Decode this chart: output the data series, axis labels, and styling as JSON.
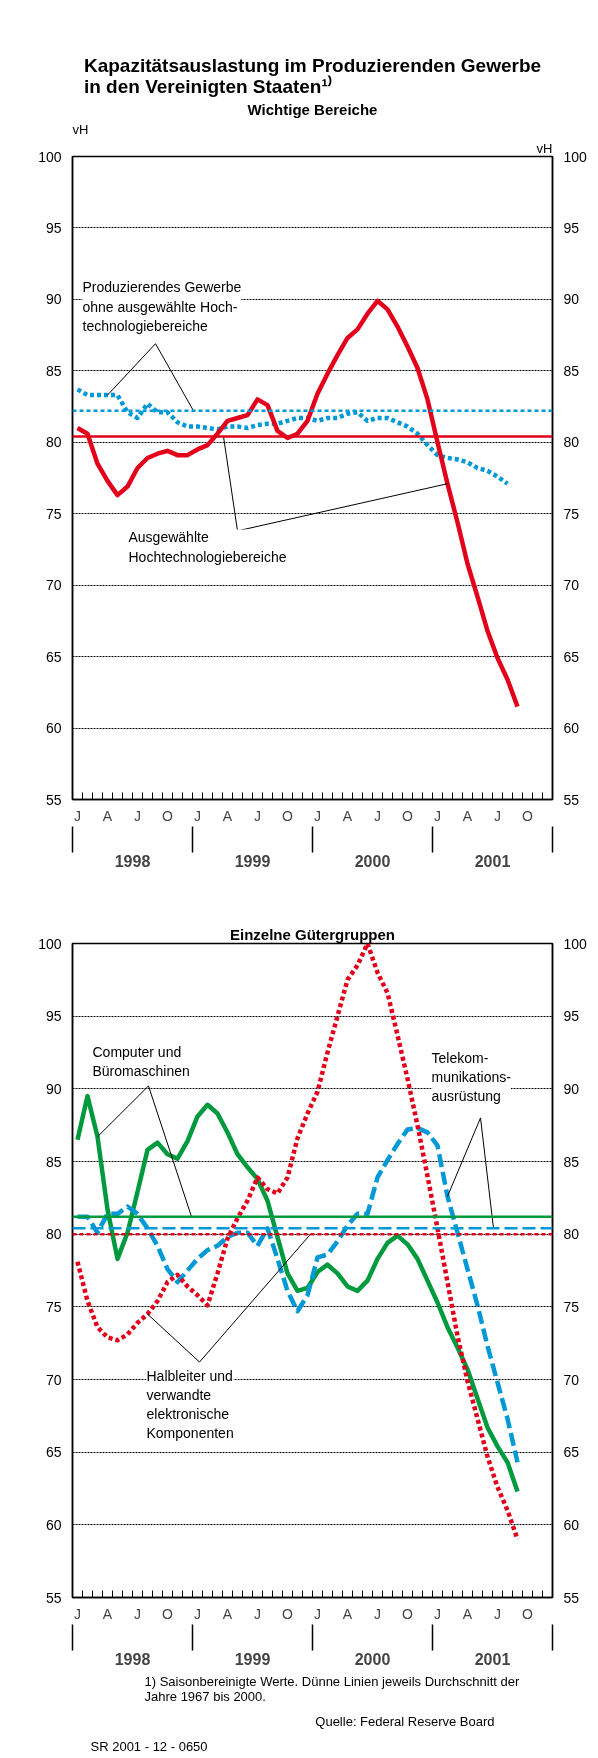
{
  "chart_data": [
    {
      "type": "line",
      "title": "Kapazitätsauslastung im Produzierenden Gewerbe\nin den Vereinigten Staaten¹⁾",
      "subtitle": "Wichtige Bereiche",
      "ylabel": "vH",
      "y2label": "vH",
      "categories": [
        "J",
        null,
        null,
        "A",
        null,
        null,
        "J",
        null,
        null,
        "O",
        null,
        null,
        "J",
        null,
        null,
        "A",
        null,
        null,
        "J",
        null,
        null,
        "O",
        null,
        null,
        "J",
        null,
        null,
        "A",
        null,
        null,
        "J",
        null,
        null,
        "O",
        null,
        null,
        "J",
        null,
        null,
        "A",
        null,
        null,
        "J",
        null,
        null,
        "O",
        null,
        null
      ],
      "ylim": [
        55,
        100
      ],
      "yticks": [
        55,
        60,
        65,
        70,
        75,
        80,
        85,
        90,
        95,
        100
      ],
      "y2lim": [
        55,
        100
      ],
      "y2ticks": [
        55,
        60,
        65,
        70,
        75,
        80,
        85,
        90,
        95,
        100
      ],
      "grid": "y",
      "series": [
        {
          "name": "Produzierendes Gewerbe\nohne ausgewählte Hoch-\ntechnologiebereiche",
          "color": "#0099d6",
          "line_style": "dotted",
          "values": [
            83.7,
            83.3,
            83.3,
            83.3,
            83.3,
            82.1,
            81.7,
            82.7,
            82.1,
            82.1,
            81.4,
            81.1,
            81.1,
            81.0,
            80.9,
            81.1,
            81.1,
            81.0,
            81.2,
            81.3,
            81.3,
            81.5,
            81.7,
            81.7,
            81.5,
            81.7,
            81.7,
            82.0,
            82.1,
            81.5,
            81.7,
            81.7,
            81.4,
            81.1,
            80.6,
            79.8,
            79.1,
            78.9,
            78.8,
            78.6,
            78.2,
            78.0,
            77.6,
            77.1,
            null,
            null,
            null,
            null
          ]
        },
        {
          "name": "Ausgewählte\nHochtechnologiebereiche",
          "color": "#e2001a",
          "line_style": "solid",
          "values": [
            81.0,
            80.6,
            78.5,
            77.3,
            76.3,
            76.9,
            78.2,
            78.9,
            79.2,
            79.4,
            79.1,
            79.1,
            79.5,
            79.8,
            80.6,
            81.5,
            81.7,
            81.9,
            83.0,
            82.6,
            80.8,
            80.3,
            80.6,
            81.5,
            83.4,
            84.8,
            86.1,
            87.3,
            87.9,
            89.0,
            89.9,
            89.3,
            88.1,
            86.7,
            85.2,
            83.0,
            80.0,
            77.1,
            74.4,
            71.5,
            69.2,
            66.8,
            64.9,
            63.4,
            61.5,
            null,
            null,
            null
          ]
        }
      ],
      "ref_lines": [
        {
          "axis": "y",
          "value": 82.2,
          "color": "#0099d6",
          "line_style": "dotted"
        },
        {
          "axis": "y",
          "value": 80.4,
          "color": "#e2001a",
          "line_style": "solid"
        }
      ],
      "annotations": [
        "1998",
        "1999",
        "2000",
        "2001"
      ]
    },
    {
      "type": "line",
      "subtitle": "Einzelne Gütergruppen",
      "categories": [
        "J",
        null,
        null,
        "A",
        null,
        null,
        "J",
        null,
        null,
        "O",
        null,
        null,
        "J",
        null,
        null,
        "A",
        null,
        null,
        "J",
        null,
        null,
        "O",
        null,
        null,
        "J",
        null,
        null,
        "A",
        null,
        null,
        "J",
        null,
        null,
        "O",
        null,
        null,
        "J",
        null,
        null,
        "A",
        null,
        null,
        "J",
        null,
        null,
        "O",
        null,
        null
      ],
      "ylim": [
        55,
        100
      ],
      "yticks": [
        55,
        60,
        65,
        70,
        75,
        80,
        85,
        90,
        95,
        100
      ],
      "y2lim": [
        55,
        100
      ],
      "y2ticks": [
        55,
        60,
        65,
        70,
        75,
        80,
        85,
        90,
        95,
        100
      ],
      "grid": "y",
      "series": [
        {
          "name": "Computer und\nBüromaschinen",
          "color": "#009a3e",
          "line_style": "solid",
          "values": [
            86.5,
            89.5,
            86.7,
            81.7,
            78.3,
            80.1,
            82.9,
            85.8,
            86.3,
            85.5,
            85.2,
            86.4,
            88.1,
            88.9,
            88.3,
            87.0,
            85.5,
            84.6,
            83.8,
            82.3,
            79.8,
            77.3,
            76.1,
            76.3,
            77.4,
            77.9,
            77.3,
            76.4,
            76.1,
            76.8,
            78.3,
            79.4,
            79.9,
            79.3,
            78.3,
            76.8,
            75.3,
            73.6,
            72.2,
            70.7,
            68.7,
            66.7,
            65.4,
            64.3,
            62.3,
            null,
            null,
            null
          ]
        },
        {
          "name": "Telekom-\nmunikations-\nausrüstung",
          "color": "#0099d6",
          "line_style": "dashed",
          "values": [
            81.2,
            81.2,
            80.1,
            81.4,
            81.4,
            81.9,
            81.4,
            80.4,
            79.2,
            77.6,
            76.7,
            77.5,
            78.3,
            78.9,
            79.2,
            79.8,
            80.1,
            80.1,
            79.2,
            80.4,
            78.3,
            76.1,
            74.7,
            75.8,
            78.4,
            78.6,
            79.5,
            80.6,
            81.4,
            81.4,
            83.9,
            85.1,
            86.2,
            87.2,
            87.3,
            87.0,
            86.1,
            82.6,
            80.1,
            77.6,
            75.1,
            72.3,
            69.8,
            67.3,
            64.3,
            null,
            null,
            null
          ]
        },
        {
          "name": "Halbleiter und\nverwandte\nelektronische\nKomponenten",
          "color": "#e2001a",
          "line_style": "dotted",
          "values": [
            78.1,
            75.4,
            73.6,
            72.9,
            72.7,
            73.1,
            73.9,
            74.5,
            75.4,
            76.7,
            77.2,
            76.4,
            75.8,
            75.1,
            77.3,
            79.7,
            81.1,
            82.3,
            83.9,
            83.1,
            82.8,
            83.9,
            86.6,
            88.3,
            89.8,
            92.5,
            95.0,
            97.5,
            98.5,
            100.0,
            98.0,
            96.6,
            93.7,
            90.7,
            87.5,
            84.0,
            80.4,
            76.7,
            73.0,
            69.9,
            67.3,
            64.7,
            62.6,
            61.0,
            59.0,
            null,
            null,
            null
          ]
        }
      ],
      "ref_lines": [
        {
          "axis": "y",
          "value": 81.2,
          "color": "#009a3e",
          "line_style": "solid"
        },
        {
          "axis": "y",
          "value": 80.4,
          "color": "#0099d6",
          "line_style": "dashed"
        },
        {
          "axis": "y",
          "value": 80.0,
          "color": "#e2001a",
          "line_style": "dotted"
        }
      ],
      "annotations": [
        "1998",
        "1999",
        "2000",
        "2001",
        "1) Saisonbereinigte Werte. Dünne Linien jeweils Durchschnitt der\nJahre 1967 bis 2000.",
        "Quelle: Federal Reserve Board",
        "SR 2001 - 12 - 0650"
      ]
    }
  ]
}
